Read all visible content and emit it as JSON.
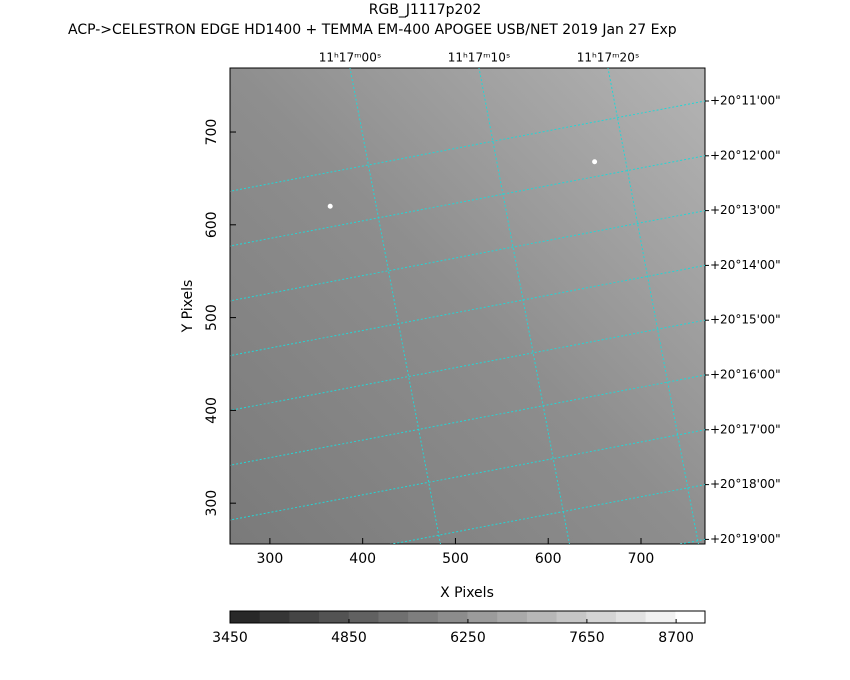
{
  "chart_data": {
    "type": "image",
    "title": "RGB_J1117p202",
    "subtitle": "ACP->CELESTRON EDGE HD1400 + TEMMA EM-400 APOGEE USB/NET   2019 Jan 27    Exp",
    "xlabel": "X Pixels",
    "ylabel": "Y Pixels",
    "xlim": [
      257,
      769
    ],
    "ylim": [
      256,
      769
    ],
    "xticks": [
      300,
      400,
      500,
      600,
      700
    ],
    "yticks": [
      300,
      400,
      500,
      600,
      700
    ],
    "ra_ticks": [
      "11ʰ17ᵐ00ˢ",
      "11ʰ17ᵐ10ˢ",
      "11ʰ17ᵐ20ˢ"
    ],
    "dec_ticks": [
      "+20°11'00\"",
      "+20°12'00\"",
      "+20°13'00\"",
      "+20°14'00\"",
      "+20°15'00\"",
      "+20°16'00\"",
      "+20°17'00\"",
      "+20°18'00\"",
      "+20°19'00\""
    ],
    "grid_color": "#22d6d6",
    "sources": {
      "x": [
        365,
        650
      ],
      "y": [
        620,
        668
      ]
    },
    "colorbar": {
      "lim": [
        3450,
        9040
      ],
      "ticks": [
        3450,
        4850,
        6250,
        7650,
        8700
      ],
      "levels": 16
    }
  }
}
